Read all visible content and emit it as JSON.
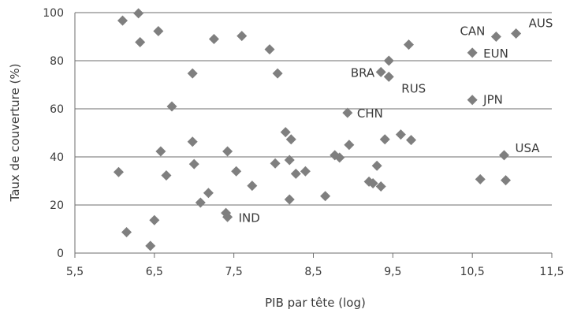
{
  "chart_data": {
    "type": "scatter",
    "title": "",
    "xlabel": "PIB par tête (log)",
    "ylabel": "Taux de couverture (%)",
    "xlim": [
      5.5,
      11.5
    ],
    "ylim": [
      0,
      100
    ],
    "x_ticks": [
      5.5,
      6.5,
      7.5,
      8.5,
      9.5,
      10.5,
      11.5
    ],
    "x_tick_labels": [
      "5,5",
      "6,5",
      "7,5",
      "8,5",
      "9,5",
      "10,5",
      "11,5"
    ],
    "y_ticks": [
      0,
      20,
      40,
      60,
      80,
      100
    ],
    "y_tick_labels": [
      "0",
      "20",
      "40",
      "60",
      "80",
      "100"
    ],
    "grid": "horizontal",
    "marker": "diamond",
    "marker_color": "#7f7f7f",
    "points": [
      {
        "x": 6.1,
        "y": 96.7
      },
      {
        "x": 6.3,
        "y": 99.7
      },
      {
        "x": 6.32,
        "y": 87.7
      },
      {
        "x": 6.55,
        "y": 92.3
      },
      {
        "x": 6.98,
        "y": 74.7
      },
      {
        "x": 6.72,
        "y": 61.0
      },
      {
        "x": 7.25,
        "y": 89.0
      },
      {
        "x": 7.6,
        "y": 90.3
      },
      {
        "x": 7.95,
        "y": 84.7
      },
      {
        "x": 8.05,
        "y": 74.7
      },
      {
        "x": 6.05,
        "y": 33.7
      },
      {
        "x": 6.58,
        "y": 42.3
      },
      {
        "x": 6.65,
        "y": 32.3
      },
      {
        "x": 6.98,
        "y": 46.3
      },
      {
        "x": 7.0,
        "y": 37.0
      },
      {
        "x": 7.42,
        "y": 42.3
      },
      {
        "x": 7.53,
        "y": 34.0
      },
      {
        "x": 7.73,
        "y": 28.0
      },
      {
        "x": 7.18,
        "y": 25.0
      },
      {
        "x": 7.08,
        "y": 21.0
      },
      {
        "x": 6.15,
        "y": 8.7
      },
      {
        "x": 6.5,
        "y": 13.7
      },
      {
        "x": 6.45,
        "y": 3.0
      },
      {
        "x": 7.4,
        "y": 16.7
      },
      {
        "x": 7.42,
        "y": 15.0,
        "label": "IND"
      },
      {
        "x": 8.02,
        "y": 37.3
      },
      {
        "x": 8.15,
        "y": 50.3
      },
      {
        "x": 8.22,
        "y": 47.3
      },
      {
        "x": 8.2,
        "y": 38.7
      },
      {
        "x": 8.28,
        "y": 33.0
      },
      {
        "x": 8.4,
        "y": 34.0
      },
      {
        "x": 8.2,
        "y": 22.3
      },
      {
        "x": 8.65,
        "y": 23.7
      },
      {
        "x": 8.77,
        "y": 40.7
      },
      {
        "x": 8.83,
        "y": 39.7
      },
      {
        "x": 8.95,
        "y": 45.0
      },
      {
        "x": 8.93,
        "y": 58.3,
        "label": "CHN"
      },
      {
        "x": 9.2,
        "y": 29.7
      },
      {
        "x": 9.25,
        "y": 29.0
      },
      {
        "x": 9.3,
        "y": 36.3
      },
      {
        "x": 9.35,
        "y": 27.7
      },
      {
        "x": 9.4,
        "y": 47.3
      },
      {
        "x": 9.6,
        "y": 49.3
      },
      {
        "x": 9.73,
        "y": 47.0
      },
      {
        "x": 9.35,
        "y": 75.3,
        "label": "BRA"
      },
      {
        "x": 9.45,
        "y": 73.3,
        "label": "RUS"
      },
      {
        "x": 9.45,
        "y": 80.0
      },
      {
        "x": 9.7,
        "y": 86.7
      },
      {
        "x": 10.5,
        "y": 83.3,
        "label": "EUN"
      },
      {
        "x": 10.8,
        "y": 90.0,
        "label": "CAN"
      },
      {
        "x": 11.05,
        "y": 91.3,
        "label": "AUS"
      },
      {
        "x": 10.5,
        "y": 63.7,
        "label": "JPN"
      },
      {
        "x": 10.9,
        "y": 40.7,
        "label": "USA"
      },
      {
        "x": 10.6,
        "y": 30.7
      },
      {
        "x": 10.92,
        "y": 30.3
      }
    ]
  }
}
